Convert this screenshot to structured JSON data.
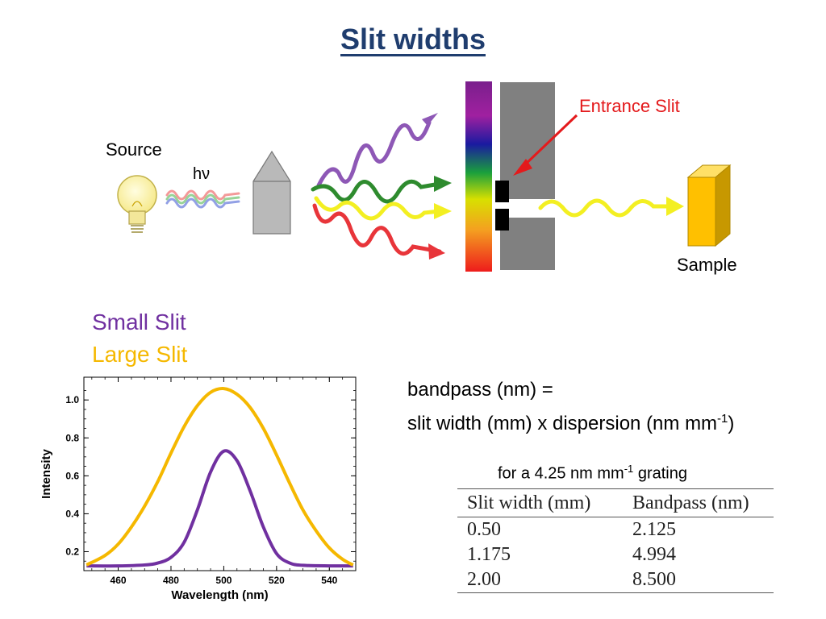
{
  "title": "Slit widths",
  "diagram": {
    "source_label": "Source",
    "photon_label": "hν",
    "entrance_label": "Entrance Slit",
    "sample_label": "Sample",
    "colors": {
      "violet": "#8e58b6",
      "green": "#2e8b2e",
      "yellow": "#f3ef22",
      "red": "#e8353a",
      "arrow": "#e41a1c"
    }
  },
  "legend": {
    "small": "Small Slit",
    "large": "Large Slit"
  },
  "formula": {
    "line1": "bandpass (nm) =",
    "line2_a": "slit width (mm) x dispersion (nm mm",
    "line2_sup": "-1",
    "line2_b": ")"
  },
  "grating": {
    "a": "for a 4.25 nm mm",
    "sup": "-1",
    "b": " grating"
  },
  "table": {
    "headers": [
      "Slit width (mm)",
      "Bandpass (nm)"
    ],
    "rows": [
      [
        "0.50",
        "2.125"
      ],
      [
        "1.175",
        "4.994"
      ],
      [
        "2.00",
        "8.500"
      ]
    ]
  },
  "chart_data": {
    "type": "line",
    "xlabel": "Wavelength (nm)",
    "ylabel": "Intensity",
    "xlim": [
      447,
      550
    ],
    "ylim": [
      0.1,
      1.12
    ],
    "xticks": [
      460,
      480,
      500,
      520,
      540
    ],
    "yticks": [
      0.2,
      0.4,
      0.6,
      0.8,
      1.0
    ],
    "ytick_labels": [
      "0.2",
      "0.4",
      "0.6",
      "0.8",
      "1.0"
    ],
    "series": [
      {
        "name": "Small Slit",
        "color": "#7030a0",
        "x": [
          448,
          460,
          470,
          475,
          480,
          485,
          490,
          495,
          500,
          505,
          510,
          515,
          520,
          525,
          530,
          540,
          549
        ],
        "y": [
          0.125,
          0.125,
          0.13,
          0.14,
          0.17,
          0.25,
          0.42,
          0.62,
          0.73,
          0.68,
          0.52,
          0.33,
          0.19,
          0.14,
          0.128,
          0.125,
          0.125
        ]
      },
      {
        "name": "Large Slit",
        "color": "#f5b800",
        "x": [
          448,
          455,
          460,
          465,
          470,
          475,
          480,
          485,
          490,
          495,
          500,
          505,
          510,
          515,
          520,
          525,
          530,
          535,
          540,
          545,
          549
        ],
        "y": [
          0.13,
          0.18,
          0.24,
          0.33,
          0.44,
          0.57,
          0.72,
          0.86,
          0.97,
          1.04,
          1.06,
          1.03,
          0.96,
          0.85,
          0.71,
          0.56,
          0.42,
          0.31,
          0.22,
          0.16,
          0.13
        ]
      }
    ]
  }
}
